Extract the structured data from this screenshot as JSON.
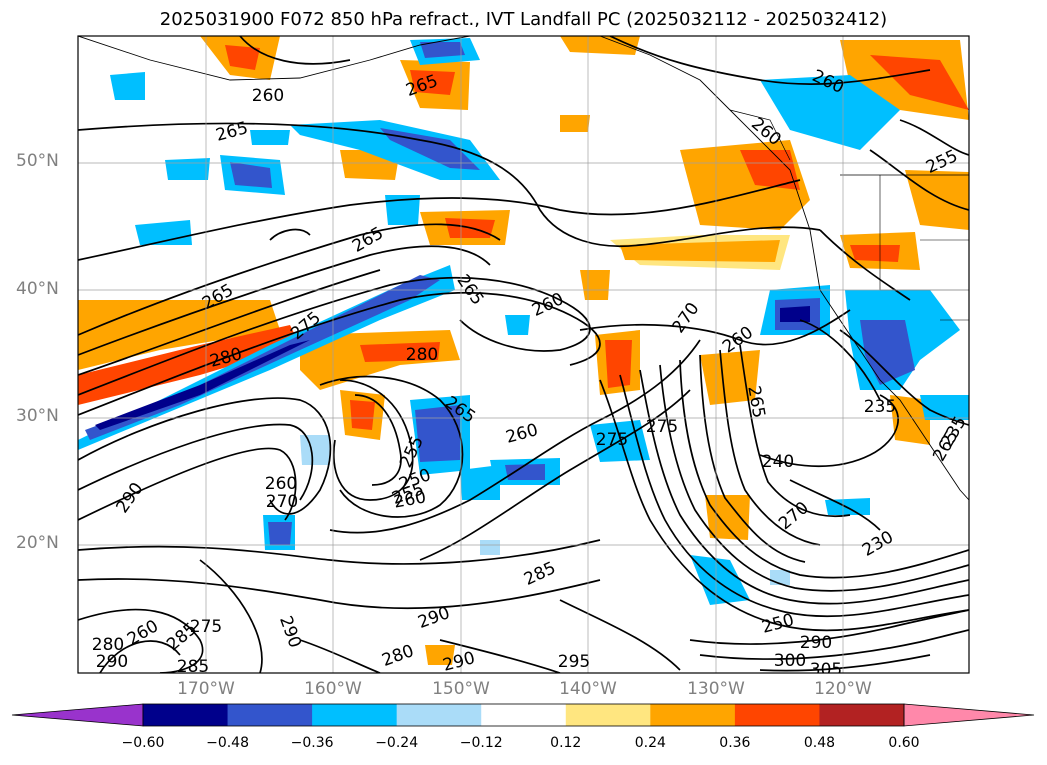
{
  "title": "2025031900 F072 850 hPa refract., IVT Landfall PC (2025032112 - 2025032412)",
  "map": {
    "lon_ticks": [
      "170°W",
      "160°W",
      "150°W",
      "140°W",
      "130°W",
      "120°W"
    ],
    "lat_ticks": [
      "50°N",
      "40°N",
      "30°N",
      "20°N"
    ],
    "contour_labels": [
      "260",
      "265",
      "260",
      "265",
      "265",
      "260",
      "255",
      "265",
      "265",
      "260",
      "270",
      "280",
      "275",
      "280",
      "260",
      "265",
      "255",
      "250",
      "255",
      "260",
      "260",
      "275",
      "275",
      "240",
      "235",
      "230",
      "290",
      "270",
      "260",
      "285",
      "290",
      "280",
      "275",
      "290",
      "295",
      "290",
      "250",
      "290",
      "300",
      "305",
      "285",
      "265",
      "270",
      "260",
      "280",
      "285",
      "290",
      "235",
      "265"
    ],
    "lon_grid_values": [
      -170,
      -160,
      -150,
      -140,
      -130,
      -120
    ],
    "lat_grid_values": [
      20,
      30,
      40,
      50
    ]
  },
  "colorbar": {
    "ticks": [
      "−0.60",
      "−0.48",
      "−0.36",
      "−0.24",
      "−0.12",
      "0.12",
      "0.24",
      "0.36",
      "0.48",
      "0.60"
    ],
    "colors": [
      "#9933cc",
      "#00008b",
      "#3355cc",
      "#00bfff",
      "#aadcf8",
      "#ffffff",
      "#ffe680",
      "#ffa500",
      "#ff4500",
      "#b22222",
      "#ff88aa"
    ]
  }
}
